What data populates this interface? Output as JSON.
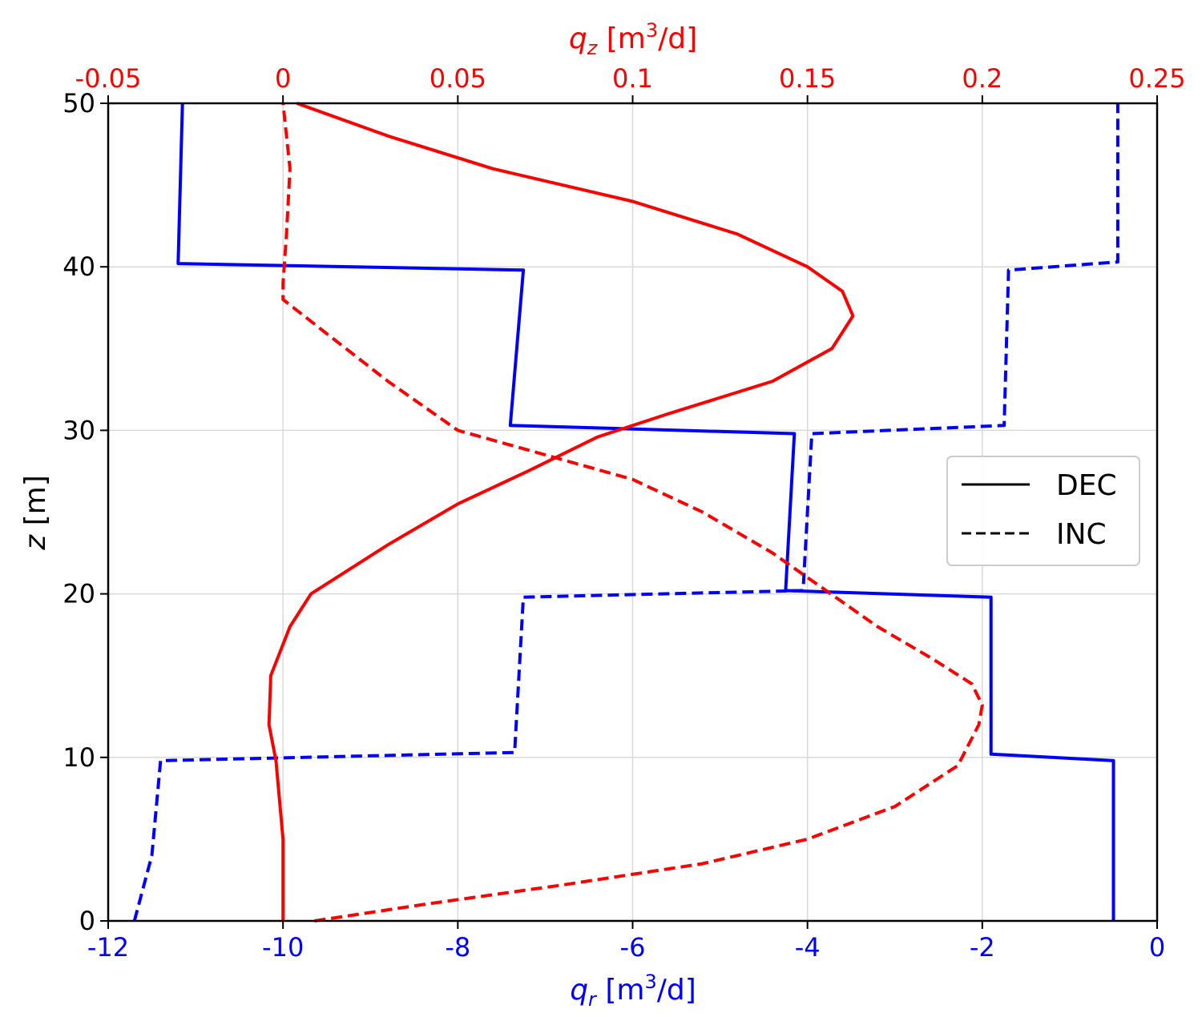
{
  "colors": {
    "qr": "#0000ff",
    "qz": "#ff0000",
    "grid": "#d9d9d9",
    "frame": "#000000",
    "legend_line": "#000000"
  },
  "chart_data": {
    "type": "line",
    "title": "",
    "ylabel": {
      "italic": "z",
      "text": " [m]"
    },
    "xlabel_bottom": {
      "italic": "q",
      "sub": "r",
      "pre": " [m",
      "sup": "3",
      "post": "/d]"
    },
    "xlabel_top": {
      "italic": "q",
      "sub": "z",
      "pre": " [m",
      "sup": "3",
      "post": "/d]"
    },
    "ylim": [
      0,
      50
    ],
    "xlim_bottom": [
      -12,
      0
    ],
    "xlim_top": [
      -0.05,
      0.25
    ],
    "y_ticks": [
      "0",
      "10",
      "20",
      "30",
      "40",
      "50"
    ],
    "x_bottom_ticks": [
      "-12",
      "-10",
      "-8",
      "-6",
      "-4",
      "-2",
      "0"
    ],
    "x_top_ticks": [
      "-0.05",
      "0",
      "0.05",
      "0.1",
      "0.15",
      "0.2",
      "0.25"
    ],
    "grid": true,
    "legend": {
      "position": "center-right",
      "entries": [
        {
          "label": "DEC",
          "style": "solid"
        },
        {
          "label": "INC",
          "style": "dashed"
        }
      ]
    },
    "series": [
      {
        "name": "DEC",
        "axis": "bottom",
        "color": "qr",
        "style": "solid",
        "points": [
          [
            -0.5,
            0
          ],
          [
            -0.5,
            9.8
          ],
          [
            -1.9,
            10.2
          ],
          [
            -1.9,
            19.8
          ],
          [
            -4.25,
            20.2
          ],
          [
            -4.15,
            29.8
          ],
          [
            -7.4,
            30.3
          ],
          [
            -7.25,
            39.8
          ],
          [
            -11.2,
            40.2
          ],
          [
            -11.15,
            50
          ]
        ]
      },
      {
        "name": "INC",
        "axis": "bottom",
        "color": "qr",
        "style": "dashed",
        "points": [
          [
            -11.7,
            0
          ],
          [
            -11.5,
            4
          ],
          [
            -11.4,
            9.8
          ],
          [
            -7.35,
            10.3
          ],
          [
            -7.25,
            19.8
          ],
          [
            -4.05,
            20.2
          ],
          [
            -3.95,
            29.8
          ],
          [
            -1.75,
            30.3
          ],
          [
            -1.7,
            39.8
          ],
          [
            -0.45,
            40.3
          ],
          [
            -0.45,
            50
          ]
        ]
      },
      {
        "name": "DEC",
        "axis": "top",
        "color": "qz",
        "style": "solid",
        "points": [
          [
            0,
            0
          ],
          [
            0,
            5
          ],
          [
            -0.002,
            9.8
          ],
          [
            -0.004,
            12
          ],
          [
            -0.0035,
            15
          ],
          [
            0.002,
            18
          ],
          [
            0.008,
            20
          ],
          [
            0.03,
            23
          ],
          [
            0.05,
            25.5
          ],
          [
            0.07,
            27.5
          ],
          [
            0.09,
            29.6
          ],
          [
            0.11,
            31
          ],
          [
            0.14,
            33
          ],
          [
            0.157,
            35
          ],
          [
            0.163,
            37
          ],
          [
            0.16,
            38.5
          ],
          [
            0.15,
            40
          ],
          [
            0.13,
            42
          ],
          [
            0.1,
            44
          ],
          [
            0.06,
            46
          ],
          [
            0.03,
            48
          ],
          [
            0.004,
            50
          ]
        ]
      },
      {
        "name": "INC",
        "axis": "top",
        "color": "qz",
        "style": "dashed",
        "points": [
          [
            0.009,
            0
          ],
          [
            0.04,
            1
          ],
          [
            0.08,
            2.2
          ],
          [
            0.12,
            3.5
          ],
          [
            0.15,
            5
          ],
          [
            0.175,
            7
          ],
          [
            0.193,
            9.5
          ],
          [
            0.199,
            12
          ],
          [
            0.2,
            13.2
          ],
          [
            0.197,
            14.5
          ],
          [
            0.186,
            16
          ],
          [
            0.17,
            18
          ],
          [
            0.16,
            19.5
          ],
          [
            0.15,
            21
          ],
          [
            0.14,
            22.5
          ],
          [
            0.12,
            25
          ],
          [
            0.1,
            27
          ],
          [
            0.075,
            28.5
          ],
          [
            0.05,
            30
          ],
          [
            0.03,
            33
          ],
          [
            0.012,
            36
          ],
          [
            0,
            38
          ],
          [
            0,
            39
          ],
          [
            0.001,
            42
          ],
          [
            0.002,
            46
          ],
          [
            0,
            50
          ]
        ]
      }
    ]
  }
}
